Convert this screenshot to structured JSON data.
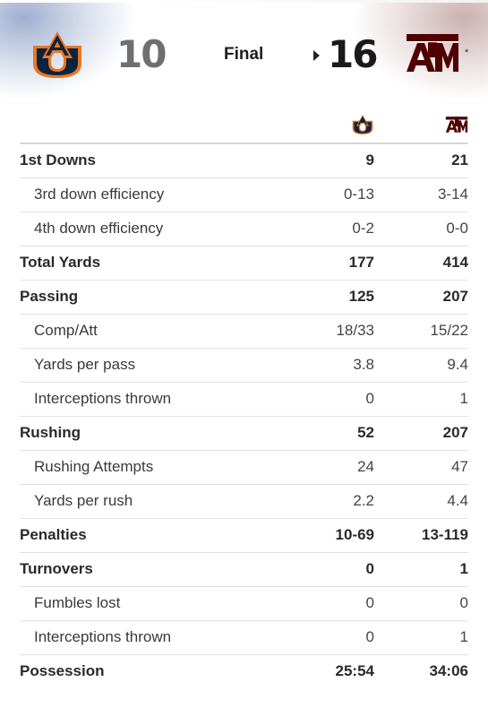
{
  "game": {
    "status": "Final",
    "away": {
      "name": "Auburn",
      "logo_icon": "auburn-logo-icon",
      "score": "10",
      "color": "#0c2340",
      "accent": "#e87722"
    },
    "home": {
      "name": "Texas A&M",
      "logo_icon": "texas-am-logo-icon",
      "score": "16",
      "color": "#500000",
      "ranked_marker": "*"
    }
  },
  "stats": {
    "rows": [
      {
        "label": "1st Downs",
        "away": "9",
        "home": "21",
        "type": "main"
      },
      {
        "label": "3rd down efficiency",
        "away": "0-13",
        "home": "3-14",
        "type": "sub"
      },
      {
        "label": "4th down efficiency",
        "away": "0-2",
        "home": "0-0",
        "type": "sub"
      },
      {
        "label": "Total Yards",
        "away": "177",
        "home": "414",
        "type": "main"
      },
      {
        "label": "Passing",
        "away": "125",
        "home": "207",
        "type": "main"
      },
      {
        "label": "Comp/Att",
        "away": "18/33",
        "home": "15/22",
        "type": "sub"
      },
      {
        "label": "Yards per pass",
        "away": "3.8",
        "home": "9.4",
        "type": "sub"
      },
      {
        "label": "Interceptions thrown",
        "away": "0",
        "home": "1",
        "type": "sub"
      },
      {
        "label": "Rushing",
        "away": "52",
        "home": "207",
        "type": "main"
      },
      {
        "label": "Rushing Attempts",
        "away": "24",
        "home": "47",
        "type": "sub"
      },
      {
        "label": "Yards per rush",
        "away": "2.2",
        "home": "4.4",
        "type": "sub"
      },
      {
        "label": "Penalties",
        "away": "10-69",
        "home": "13-119",
        "type": "main"
      },
      {
        "label": "Turnovers",
        "away": "0",
        "home": "1",
        "type": "main"
      },
      {
        "label": "Fumbles lost",
        "away": "0",
        "home": "0",
        "type": "sub"
      },
      {
        "label": "Interceptions thrown",
        "away": "0",
        "home": "1",
        "type": "sub"
      },
      {
        "label": "Possession",
        "away": "25:54",
        "home": "34:06",
        "type": "main"
      }
    ]
  }
}
